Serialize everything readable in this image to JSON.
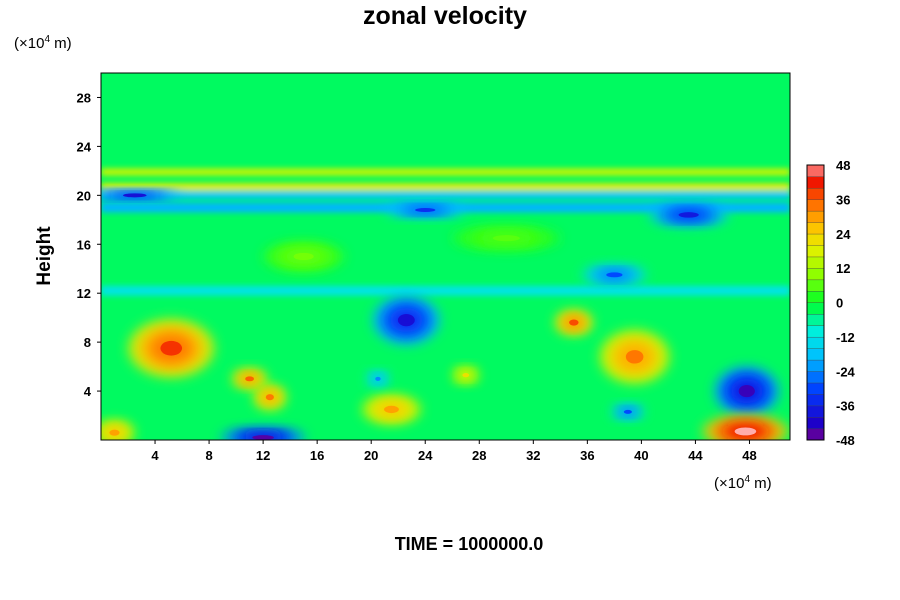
{
  "chart_data": {
    "type": "heatmap",
    "title": "zonal velocity",
    "ylabel": "Height",
    "y_unit": {
      "prefix": "(×10",
      "exp": "4",
      "suffix": " m)"
    },
    "x_unit": {
      "prefix": "(×10",
      "exp": "4",
      "suffix": " m)"
    },
    "xlim": [
      0,
      51
    ],
    "ylim": [
      0,
      30
    ],
    "x_ticks": [
      4,
      8,
      12,
      16,
      20,
      24,
      28,
      32,
      36,
      40,
      44,
      48
    ],
    "y_ticks": [
      4,
      8,
      12,
      16,
      20,
      24,
      28
    ],
    "colorbar": {
      "min": -48,
      "max": 48,
      "step": 4,
      "ticks": [
        48,
        36,
        24,
        12,
        0,
        -12,
        -24,
        -36,
        -48
      ]
    },
    "background_value": -3,
    "layers": [
      {
        "x_range": [
          0,
          51
        ],
        "y_range": [
          21.6,
          22.2
        ],
        "value": 16
      },
      {
        "x_range": [
          0,
          51
        ],
        "y_range": [
          20.4,
          21.0
        ],
        "value": 20
      },
      {
        "x_range": [
          0,
          51
        ],
        "y_range": [
          19.7,
          20.3
        ],
        "value": -18
      },
      {
        "x_range": [
          0,
          51
        ],
        "y_range": [
          18.6,
          19.4
        ],
        "value": -20
      },
      {
        "x_range": [
          0,
          51
        ],
        "y_range": [
          11.8,
          12.6
        ],
        "value": -12
      }
    ],
    "features": [
      {
        "x": 5.2,
        "y": 7.5,
        "rx": 3.2,
        "ry": 2.4,
        "value": 40
      },
      {
        "x": 1.0,
        "y": 0.6,
        "rx": 1.5,
        "ry": 1.0,
        "value": 30
      },
      {
        "x": 11.0,
        "y": 5.0,
        "rx": 1.3,
        "ry": 0.8,
        "value": 36
      },
      {
        "x": 12.5,
        "y": 3.5,
        "rx": 1.2,
        "ry": 1.0,
        "value": 34
      },
      {
        "x": 21.5,
        "y": 2.5,
        "rx": 2.2,
        "ry": 1.2,
        "value": 30
      },
      {
        "x": 27.0,
        "y": 5.3,
        "rx": 1.0,
        "ry": 0.7,
        "value": 22
      },
      {
        "x": 35.0,
        "y": 9.6,
        "rx": 1.4,
        "ry": 1.0,
        "value": 38
      },
      {
        "x": 39.5,
        "y": 6.8,
        "rx": 2.6,
        "ry": 2.2,
        "value": 34
      },
      {
        "x": 22.6,
        "y": 9.8,
        "rx": 2.5,
        "ry": 2.0,
        "value": -40
      },
      {
        "x": 47.8,
        "y": 4.0,
        "rx": 2.4,
        "ry": 2.0,
        "value": -44
      },
      {
        "x": 12.0,
        "y": 0.2,
        "rx": 3.2,
        "ry": 0.8,
        "value": -46
      },
      {
        "x": 2.5,
        "y": 20.0,
        "rx": 3.5,
        "ry": 0.4,
        "value": -40
      },
      {
        "x": 24.0,
        "y": 18.8,
        "rx": 3.0,
        "ry": 0.6,
        "value": -34
      },
      {
        "x": 43.5,
        "y": 18.4,
        "rx": 3.0,
        "ry": 0.9,
        "value": -38
      },
      {
        "x": 38.0,
        "y": 13.5,
        "rx": 2.4,
        "ry": 0.8,
        "value": -30
      },
      {
        "x": 39.0,
        "y": 2.3,
        "rx": 1.2,
        "ry": 0.6,
        "value": -30
      },
      {
        "x": 20.5,
        "y": 5.0,
        "rx": 0.8,
        "ry": 0.6,
        "value": -24
      },
      {
        "x": 47.7,
        "y": 0.7,
        "rx": 3.2,
        "ry": 1.3,
        "value": 50
      },
      {
        "x": 15.0,
        "y": 15.0,
        "rx": 3.0,
        "ry": 1.2,
        "value": 8
      },
      {
        "x": 30.0,
        "y": 16.5,
        "rx": 4.0,
        "ry": 1.0,
        "value": 6
      }
    ],
    "time_label": "TIME = 1000000.0",
    "grid": false
  }
}
